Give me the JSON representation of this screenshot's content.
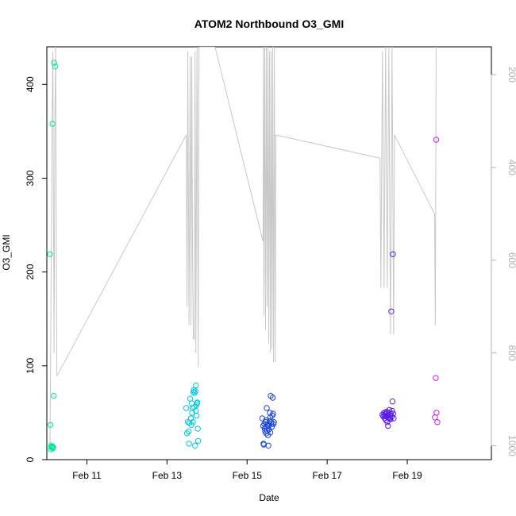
{
  "chart_data": {
    "type": "scatter",
    "title": "ATOM2 Northbound O3_GMI",
    "xlabel": "Date",
    "ylabel": "O3_GMI",
    "x_ticks": [
      {
        "label": "Feb 11",
        "day": 11
      },
      {
        "label": "Feb 13",
        "day": 13
      },
      {
        "label": "Feb 15",
        "day": 15
      },
      {
        "label": "Feb 17",
        "day": 17
      },
      {
        "label": "Feb 19",
        "day": 19
      }
    ],
    "xlim_days": [
      10.0,
      21.1
    ],
    "ylim": [
      0,
      440
    ],
    "y_ticks": [
      0,
      100,
      200,
      300,
      400
    ],
    "right_axis": {
      "ticks": [
        200,
        400,
        600,
        800,
        1000
      ],
      "ylim": [
        1030,
        140
      ],
      "reversed": true,
      "color": "#b0b0b0"
    },
    "series": [
      {
        "color": "#00e59a",
        "points": [
          [
            10.08,
            219
          ],
          [
            10.09,
            37
          ],
          [
            10.1,
            11
          ],
          [
            10.11,
            15
          ],
          [
            10.12,
            13
          ],
          [
            10.13,
            14
          ],
          [
            10.14,
            14
          ],
          [
            10.15,
            12
          ],
          [
            10.16,
            13
          ],
          [
            10.14,
            358
          ],
          [
            10.17,
            68
          ],
          [
            10.18,
            423
          ],
          [
            10.21,
            419
          ]
        ]
      },
      {
        "color": "#00c8e6",
        "points": [
          [
            13.48,
            55
          ],
          [
            13.5,
            28
          ],
          [
            13.52,
            40
          ],
          [
            13.54,
            30
          ],
          [
            13.55,
            17
          ],
          [
            13.56,
            39
          ],
          [
            13.58,
            65
          ],
          [
            13.6,
            44
          ],
          [
            13.61,
            37
          ],
          [
            13.62,
            60
          ],
          [
            13.63,
            50
          ],
          [
            13.64,
            55
          ],
          [
            13.65,
            40
          ],
          [
            13.66,
            72
          ],
          [
            13.67,
            74
          ],
          [
            13.68,
            56
          ],
          [
            13.69,
            71
          ],
          [
            13.7,
            15
          ],
          [
            13.71,
            73
          ],
          [
            13.72,
            79
          ],
          [
            13.73,
            58
          ],
          [
            13.74,
            47
          ],
          [
            13.75,
            60
          ],
          [
            13.76,
            61
          ],
          [
            13.77,
            33
          ],
          [
            13.78,
            20
          ],
          [
            13.6,
            44
          ],
          [
            13.72,
            52
          ]
        ]
      },
      {
        "color": "#1a44e0",
        "points": [
          [
            15.38,
            44
          ],
          [
            15.4,
            36
          ],
          [
            15.41,
            17
          ],
          [
            15.42,
            16
          ],
          [
            15.43,
            38
          ],
          [
            15.44,
            33
          ],
          [
            15.45,
            30
          ],
          [
            15.46,
            40
          ],
          [
            15.47,
            35
          ],
          [
            15.48,
            28
          ],
          [
            15.49,
            55
          ],
          [
            15.5,
            31
          ],
          [
            15.51,
            37
          ],
          [
            15.52,
            26
          ],
          [
            15.53,
            15
          ],
          [
            15.54,
            32
          ],
          [
            15.55,
            38
          ],
          [
            15.56,
            41
          ],
          [
            15.57,
            50
          ],
          [
            15.58,
            29
          ],
          [
            15.59,
            68
          ],
          [
            15.6,
            40
          ],
          [
            15.61,
            38
          ],
          [
            15.62,
            35
          ],
          [
            15.63,
            47
          ],
          [
            15.64,
            66
          ],
          [
            15.65,
            49
          ],
          [
            15.66,
            38
          ],
          [
            15.67,
            40
          ],
          [
            15.47,
            42
          ],
          [
            15.53,
            36
          ],
          [
            15.58,
            45
          ]
        ]
      },
      {
        "color": "#5a1ee6",
        "points": [
          [
            18.38,
            48
          ],
          [
            18.4,
            46
          ],
          [
            18.42,
            50
          ],
          [
            18.44,
            44
          ],
          [
            18.45,
            49
          ],
          [
            18.46,
            47
          ],
          [
            18.47,
            42
          ],
          [
            18.48,
            51
          ],
          [
            18.49,
            46
          ],
          [
            18.5,
            40
          ],
          [
            18.51,
            45
          ],
          [
            18.52,
            36
          ],
          [
            18.53,
            48
          ],
          [
            18.54,
            50
          ],
          [
            18.55,
            53
          ],
          [
            18.56,
            45
          ],
          [
            18.57,
            47
          ],
          [
            18.58,
            43
          ],
          [
            18.59,
            49
          ],
          [
            18.6,
            158
          ],
          [
            18.61,
            46
          ],
          [
            18.62,
            52
          ],
          [
            18.63,
            62
          ],
          [
            18.64,
            219
          ],
          [
            18.65,
            49
          ],
          [
            18.66,
            44
          ],
          [
            18.43,
            47
          ],
          [
            18.5,
            50
          ],
          [
            18.57,
            44
          ]
        ]
      },
      {
        "color": "#c81ee6",
        "points": [
          [
            19.69,
            45
          ],
          [
            19.71,
            87
          ],
          [
            19.72,
            341
          ],
          [
            19.73,
            50
          ],
          [
            19.75,
            40
          ]
        ]
      }
    ],
    "secondary_line": {
      "color": "#c8c8c8",
      "axis": "right",
      "points": [
        [
          10.08,
          1000
        ],
        [
          10.1,
          750
        ],
        [
          10.13,
          300
        ],
        [
          10.15,
          150
        ],
        [
          10.18,
          800
        ],
        [
          10.2,
          300
        ],
        [
          10.22,
          140
        ],
        [
          10.25,
          850
        ],
        [
          13.48,
          330
        ],
        [
          13.5,
          700
        ],
        [
          13.52,
          150
        ],
        [
          13.55,
          740
        ],
        [
          13.58,
          160
        ],
        [
          13.6,
          740
        ],
        [
          13.62,
          160
        ],
        [
          13.64,
          610
        ],
        [
          13.66,
          770
        ],
        [
          13.68,
          770
        ],
        [
          13.7,
          150
        ],
        [
          13.72,
          800
        ],
        [
          13.75,
          140
        ],
        [
          13.78,
          830
        ],
        [
          13.8,
          140
        ],
        [
          14.2,
          140
        ],
        [
          15.4,
          560
        ],
        [
          15.41,
          140
        ],
        [
          15.42,
          720
        ],
        [
          15.44,
          140
        ],
        [
          15.46,
          750
        ],
        [
          15.48,
          140
        ],
        [
          15.5,
          700
        ],
        [
          15.52,
          140
        ],
        [
          15.54,
          780
        ],
        [
          15.56,
          150
        ],
        [
          15.58,
          800
        ],
        [
          15.6,
          150
        ],
        [
          15.62,
          790
        ],
        [
          15.64,
          140
        ],
        [
          15.66,
          820
        ],
        [
          15.68,
          140
        ],
        [
          15.7,
          820
        ],
        [
          15.72,
          330
        ],
        [
          18.32,
          380
        ],
        [
          18.34,
          660
        ],
        [
          18.38,
          150
        ],
        [
          18.42,
          660
        ],
        [
          18.46,
          140
        ],
        [
          18.5,
          660
        ],
        [
          18.54,
          140
        ],
        [
          18.58,
          760
        ],
        [
          18.62,
          140
        ],
        [
          18.66,
          760
        ],
        [
          18.68,
          330
        ],
        [
          19.68,
          500
        ],
        [
          19.7,
          740
        ],
        [
          19.72,
          140
        ]
      ]
    }
  }
}
